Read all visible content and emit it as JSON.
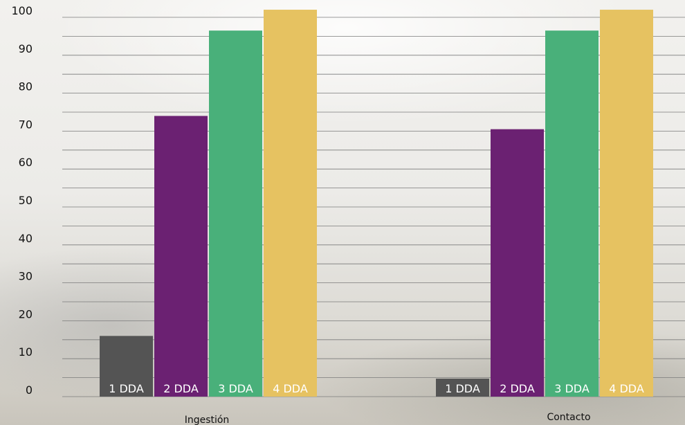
{
  "chart_data": {
    "type": "bar",
    "categories": [
      "Ingestión",
      "Contacto"
    ],
    "series": [
      {
        "name": "1 DDA",
        "values": [
          16,
          0
        ],
        "color": "#545454"
      },
      {
        "name": "2 DDA",
        "values": [
          74,
          70.5
        ],
        "color": "#6b2172"
      },
      {
        "name": "3 DDA",
        "values": [
          96.5,
          96.5
        ],
        "color": "#49b07a"
      },
      {
        "name": "4 DDA",
        "values": [
          102,
          102
        ],
        "color": "#e6c261"
      }
    ],
    "ylim": [
      0,
      100
    ],
    "yticks": [
      0,
      10,
      20,
      30,
      40,
      50,
      60,
      70,
      80,
      90,
      100
    ],
    "grid": true,
    "title": "",
    "xlabel": "",
    "ylabel": ""
  }
}
